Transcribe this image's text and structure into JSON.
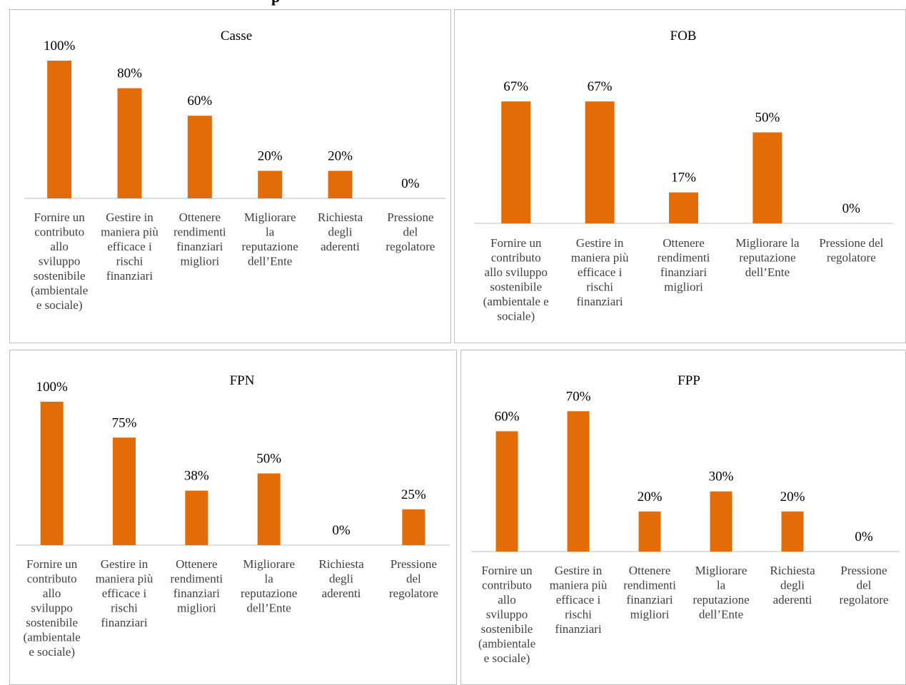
{
  "page_title_partial": "p",
  "colors": {
    "bar": "#e36c09",
    "axis": "#bfbfbf",
    "category_text": "#404040"
  },
  "chart_data": [
    {
      "type": "bar",
      "title": "Casse",
      "categories": [
        "Fornire un contributo allo sviluppo sostenibile (ambientale e sociale)",
        "Gestire in maniera più efficace i rischi finanziari",
        "Ottenere rendimenti finanziari migliori",
        "Migliorare la reputazione dell’Ente",
        "Richiesta degli aderenti",
        "Pressione del regolatore"
      ],
      "values": [
        100,
        80,
        60,
        20,
        20,
        0
      ],
      "labels": [
        "100%",
        "80%",
        "60%",
        "20%",
        "20%",
        "0%"
      ],
      "ylim": [
        0,
        100
      ],
      "grid": false,
      "legend": "none"
    },
    {
      "type": "bar",
      "title": "FOB",
      "categories": [
        "Fornire un contributo allo sviluppo sostenibile (ambientale e sociale)",
        "Gestire in maniera più efficace i rischi finanziari",
        "Ottenere rendimenti finanziari migliori",
        "Migliorare la reputazione dell’Ente",
        "Pressione del regolatore"
      ],
      "values": [
        67,
        67,
        17,
        50,
        0
      ],
      "labels": [
        "67%",
        "67%",
        "17%",
        "50%",
        "0%"
      ],
      "ylim": [
        0,
        100
      ],
      "grid": false,
      "legend": "none"
    },
    {
      "type": "bar",
      "title": "FPN",
      "categories": [
        "Fornire un contributo allo sviluppo sostenibile (ambientale e sociale)",
        "Gestire in maniera più efficace i rischi finanziari",
        "Ottenere rendimenti finanziari migliori",
        "Migliorare la reputazione dell’Ente",
        "Richiesta degli aderenti",
        "Pressione del regolatore"
      ],
      "values": [
        100,
        75,
        38,
        50,
        0,
        25
      ],
      "labels": [
        "100%",
        "75%",
        "38%",
        "50%",
        "0%",
        "25%"
      ],
      "ylim": [
        0,
        100
      ],
      "grid": false,
      "legend": "none"
    },
    {
      "type": "bar",
      "title": "FPP",
      "categories": [
        "Fornire un contributo allo sviluppo sostenibile (ambientale e sociale)",
        "Gestire in maniera più efficace i rischi finanziari",
        "Ottenere rendimenti finanziari migliori",
        "Migliorare la reputazione dell’Ente",
        "Richiesta degli aderenti",
        "Pressione del regolatore"
      ],
      "values": [
        60,
        70,
        20,
        30,
        20,
        0
      ],
      "labels": [
        "60%",
        "70%",
        "20%",
        "30%",
        "20%",
        "0%"
      ],
      "ylim": [
        0,
        100
      ],
      "grid": false,
      "legend": "none"
    }
  ]
}
